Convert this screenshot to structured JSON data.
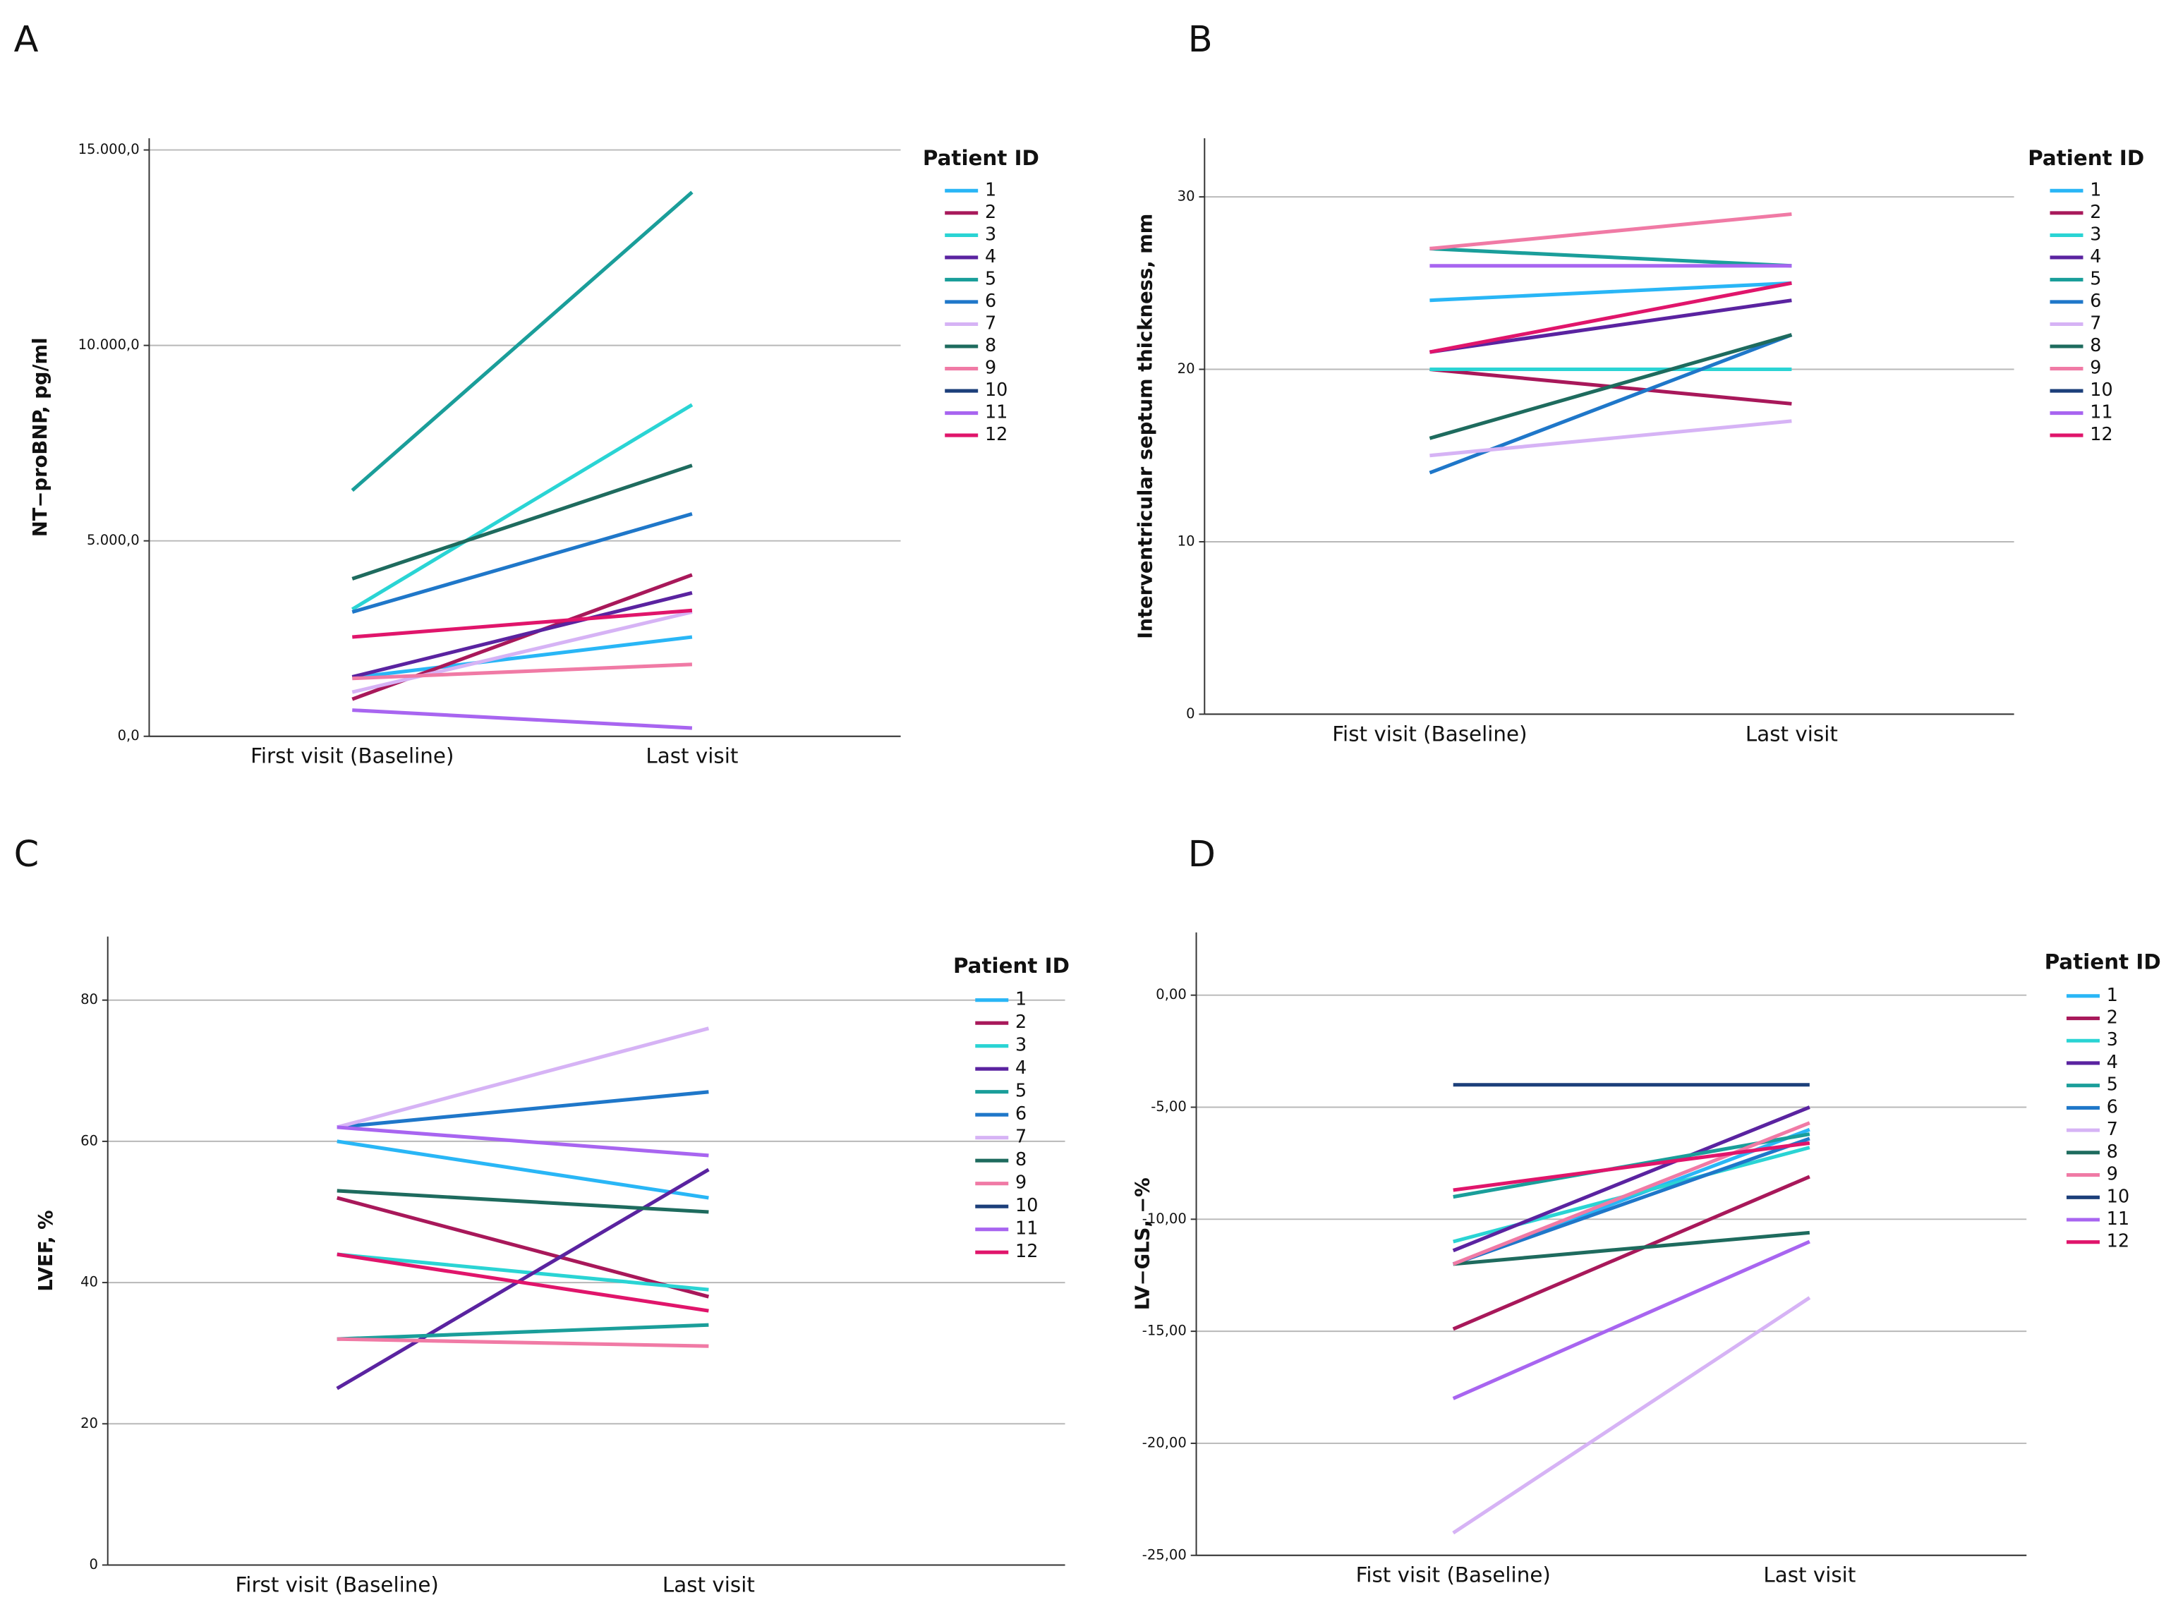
{
  "chart_data": [
    {
      "type": "line",
      "panel": "A",
      "y_label": "NT−proBNP, pg/ml",
      "legend_title": "Patient ID",
      "categories": [
        "First visit (Baseline)",
        "Last visit"
      ],
      "ylim": [
        0,
        15300
      ],
      "grid": true,
      "yticks": [
        {
          "value": 0,
          "label": "0,0"
        },
        {
          "value": 5000,
          "label": "5.000,0"
        },
        {
          "value": 10000,
          "label": "10.000,0"
        },
        {
          "value": 15000,
          "label": "15.000,0"
        }
      ],
      "series": [
        {
          "name": "1",
          "color": "#29b6f6",
          "values": [
            1500,
            2540
          ]
        },
        {
          "name": "2",
          "color": "#a8185a",
          "values": [
            950,
            4130
          ]
        },
        {
          "name": "3",
          "color": "#2ad4d4",
          "values": [
            3250,
            8480
          ]
        },
        {
          "name": "4",
          "color": "#5a23a0",
          "values": [
            1520,
            3670
          ]
        },
        {
          "name": "5",
          "color": "#1a9e9a",
          "values": [
            6290,
            13920
          ]
        },
        {
          "name": "6",
          "color": "#1f77c9",
          "values": [
            3180,
            5690
          ]
        },
        {
          "name": "7",
          "color": "#d6b3f5",
          "values": [
            1130,
            3180
          ]
        },
        {
          "name": "8",
          "color": "#1e6b5e",
          "values": [
            4030,
            6930
          ]
        },
        {
          "name": "9",
          "color": "#f07aa5",
          "values": [
            1480,
            1840
          ]
        },
        {
          "name": "10",
          "color": "#1c3f7a",
          "values": [
            null,
            null
          ]
        },
        {
          "name": "11",
          "color": "#a865f0",
          "values": [
            670,
            210
          ]
        },
        {
          "name": "12",
          "color": "#e0156b",
          "values": [
            2540,
            3220
          ]
        }
      ]
    },
    {
      "type": "line",
      "panel": "B",
      "y_label": "Interventricular septum thickness, mm",
      "legend_title": "Patient ID",
      "categories": [
        "Fist visit (Baseline)",
        "Last visit"
      ],
      "ylim": [
        0,
        33.4
      ],
      "grid": true,
      "yticks": [
        0,
        10,
        20,
        30
      ],
      "series": [
        {
          "name": "1",
          "color": "#29b6f6",
          "values": [
            24,
            25
          ]
        },
        {
          "name": "2",
          "color": "#a8185a",
          "values": [
            20,
            18
          ]
        },
        {
          "name": "3",
          "color": "#2ad4d4",
          "values": [
            20,
            20
          ]
        },
        {
          "name": "4",
          "color": "#5a23a0",
          "values": [
            21,
            24
          ]
        },
        {
          "name": "5",
          "color": "#1a9e9a",
          "values": [
            27,
            26
          ]
        },
        {
          "name": "6",
          "color": "#1f77c9",
          "values": [
            14,
            22
          ]
        },
        {
          "name": "7",
          "color": "#d6b3f5",
          "values": [
            15,
            17
          ]
        },
        {
          "name": "8",
          "color": "#1e6b5e",
          "values": [
            16,
            22
          ]
        },
        {
          "name": "9",
          "color": "#f07aa5",
          "values": [
            27,
            29
          ]
        },
        {
          "name": "10",
          "color": "#1c3f7a",
          "values": [
            null,
            null
          ]
        },
        {
          "name": "11",
          "color": "#a865f0",
          "values": [
            26,
            26
          ]
        },
        {
          "name": "12",
          "color": "#e0156b",
          "values": [
            21,
            25
          ]
        }
      ]
    },
    {
      "type": "line",
      "panel": "C",
      "y_label": "LVEF, %",
      "legend_title": "Patient ID",
      "categories": [
        "First visit (Baseline)",
        "Last visit"
      ],
      "ylim": [
        0,
        89
      ],
      "grid": true,
      "yticks": [
        0,
        20,
        40,
        60,
        80
      ],
      "series": [
        {
          "name": "1",
          "color": "#29b6f6",
          "values": [
            60,
            52
          ]
        },
        {
          "name": "2",
          "color": "#a8185a",
          "values": [
            52,
            38
          ]
        },
        {
          "name": "3",
          "color": "#2ad4d4",
          "values": [
            44,
            39
          ]
        },
        {
          "name": "4",
          "color": "#5a23a0",
          "values": [
            25,
            56
          ]
        },
        {
          "name": "5",
          "color": "#1a9e9a",
          "values": [
            32,
            34
          ]
        },
        {
          "name": "6",
          "color": "#1f77c9",
          "values": [
            62,
            67
          ]
        },
        {
          "name": "7",
          "color": "#d6b3f5",
          "values": [
            62,
            76
          ]
        },
        {
          "name": "8",
          "color": "#1e6b5e",
          "values": [
            53,
            50
          ]
        },
        {
          "name": "9",
          "color": "#f07aa5",
          "values": [
            32,
            31
          ]
        },
        {
          "name": "10",
          "color": "#1c3f7a",
          "values": [
            null,
            null
          ]
        },
        {
          "name": "11",
          "color": "#a865f0",
          "values": [
            62,
            58
          ]
        },
        {
          "name": "12",
          "color": "#e0156b",
          "values": [
            44,
            36
          ]
        }
      ]
    },
    {
      "type": "line",
      "panel": "D",
      "y_label": "LV−GLS, −%",
      "legend_title": "Patient ID",
      "categories": [
        "Fist visit (Baseline)",
        "Last visit"
      ],
      "ylim": [
        -25,
        2.8
      ],
      "grid": true,
      "yticks": [
        {
          "value": -25,
          "label": "-25,00"
        },
        {
          "value": -20,
          "label": "-20,00"
        },
        {
          "value": -15,
          "label": "-15,00"
        },
        {
          "value": -10,
          "label": "-10,00"
        },
        {
          "value": -5,
          "label": "-5,00"
        },
        {
          "value": 0,
          "label": "0,00"
        }
      ],
      "series": [
        {
          "name": "1",
          "color": "#29b6f6",
          "values": [
            -12,
            -6
          ]
        },
        {
          "name": "2",
          "color": "#a8185a",
          "values": [
            -14.9,
            -8.1
          ]
        },
        {
          "name": "3",
          "color": "#2ad4d4",
          "values": [
            -11,
            -6.8
          ]
        },
        {
          "name": "4",
          "color": "#5a23a0",
          "values": [
            -11.4,
            -5
          ]
        },
        {
          "name": "5",
          "color": "#1a9e9a",
          "values": [
            -9,
            -6.2
          ]
        },
        {
          "name": "6",
          "color": "#1f77c9",
          "values": [
            -12,
            -6.4
          ]
        },
        {
          "name": "7",
          "color": "#d6b3f5",
          "values": [
            -24,
            -13.5
          ]
        },
        {
          "name": "8",
          "color": "#1e6b5e",
          "values": [
            -12,
            -10.6
          ]
        },
        {
          "name": "9",
          "color": "#f07aa5",
          "values": [
            -12,
            -5.7
          ]
        },
        {
          "name": "10",
          "color": "#1c3f7a",
          "values": [
            -4,
            -4
          ]
        },
        {
          "name": "11",
          "color": "#a865f0",
          "values": [
            -18,
            -11
          ]
        },
        {
          "name": "12",
          "color": "#e0156b",
          "values": [
            -8.7,
            -6.6
          ]
        }
      ]
    }
  ]
}
